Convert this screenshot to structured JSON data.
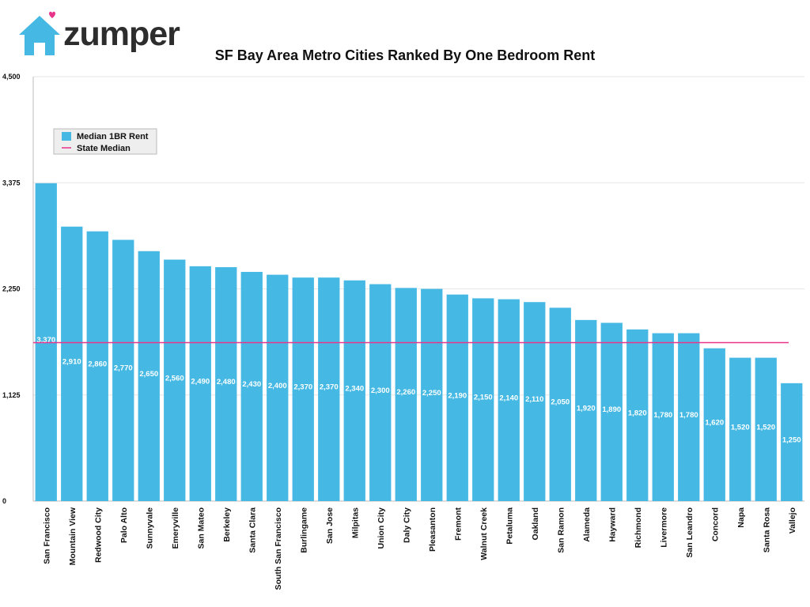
{
  "brand": {
    "name": "zumper",
    "colors": {
      "house": "#45b9e4",
      "heart": "#e8348a"
    }
  },
  "chart_data": {
    "type": "bar",
    "title": "SF Bay Area Metro Cities Ranked By One Bedroom Rent",
    "xlabel": "",
    "ylabel": "",
    "ylim": [
      0,
      4500
    ],
    "yticks": [
      "0",
      "1,125",
      "2,250",
      "3,375",
      "4,500"
    ],
    "ytick_values": [
      0,
      1125,
      2250,
      3375,
      4500
    ],
    "categories": [
      "San Francisco",
      "Mountain View",
      "Redwood City",
      "Palo Alto",
      "Sunnyvale",
      "Emeryville",
      "San Mateo",
      "Berkeley",
      "Santa Clara",
      "South San Francisco",
      "Burlingame",
      "San Jose",
      "Milpitas",
      "Union City",
      "Daly City",
      "Pleasanton",
      "Fremont",
      "Walnut Creek",
      "Petaluma",
      "Oakland",
      "San Ramon",
      "Alameda",
      "Hayward",
      "Richmond",
      "Livermore",
      "San Leandro",
      "Concord",
      "Napa",
      "Santa Rosa",
      "Vallejo"
    ],
    "series": [
      {
        "name": "Median 1BR Rent",
        "color": "#45b9e4",
        "values": [
          3370,
          2910,
          2860,
          2770,
          2650,
          2560,
          2490,
          2480,
          2430,
          2400,
          2370,
          2370,
          2340,
          2300,
          2260,
          2250,
          2190,
          2150,
          2140,
          2110,
          2050,
          1920,
          1890,
          1820,
          1780,
          1780,
          1620,
          1520,
          1520,
          1250
        ],
        "labels": [
          "3,370",
          "2,910",
          "2,860",
          "2,770",
          "2,650",
          "2,560",
          "2,490",
          "2,480",
          "2,430",
          "2,400",
          "2,370",
          "2,370",
          "2,340",
          "2,300",
          "2,260",
          "2,250",
          "2,190",
          "2,150",
          "2,140",
          "2,110",
          "2,050",
          "1,920",
          "1,890",
          "1,820",
          "1,780",
          "1,780",
          "1,620",
          "1,520",
          "1,520",
          "1,250"
        ]
      },
      {
        "name": "State Median",
        "color": "#e8348a",
        "value": 1680
      }
    ],
    "legend_placement": "top-left",
    "grid": true
  }
}
